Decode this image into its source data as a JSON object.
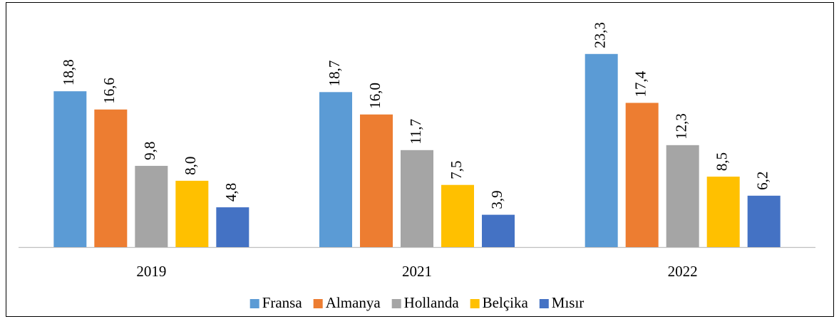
{
  "chart_data": {
    "type": "bar",
    "categories": [
      "2019",
      "2021",
      "2022"
    ],
    "series": [
      {
        "name": "Fransa",
        "color": "#5B9BD5",
        "values": [
          18.8,
          18.7,
          23.3
        ],
        "value_labels": [
          "18,8",
          "18,7",
          "23,3"
        ]
      },
      {
        "name": "Almanya",
        "color": "#ED7D31",
        "values": [
          16.6,
          16.0,
          17.4
        ],
        "value_labels": [
          "16,6",
          "16,0",
          "17,4"
        ]
      },
      {
        "name": "Hollanda",
        "color": "#A5A5A5",
        "values": [
          9.8,
          11.7,
          12.3
        ],
        "value_labels": [
          "9,8",
          "11,7",
          "12,3"
        ]
      },
      {
        "name": "Belçika",
        "color": "#FFC000",
        "values": [
          8.0,
          7.5,
          8.5
        ],
        "value_labels": [
          "8,0",
          "7,5",
          "8,5"
        ]
      },
      {
        "name": "Mısır",
        "color": "#4472C4",
        "values": [
          4.8,
          3.9,
          6.2
        ],
        "value_labels": [
          "4,8",
          "3,9",
          "6,2"
        ]
      }
    ],
    "ylim": [
      0,
      25
    ],
    "legend": "bottom"
  }
}
